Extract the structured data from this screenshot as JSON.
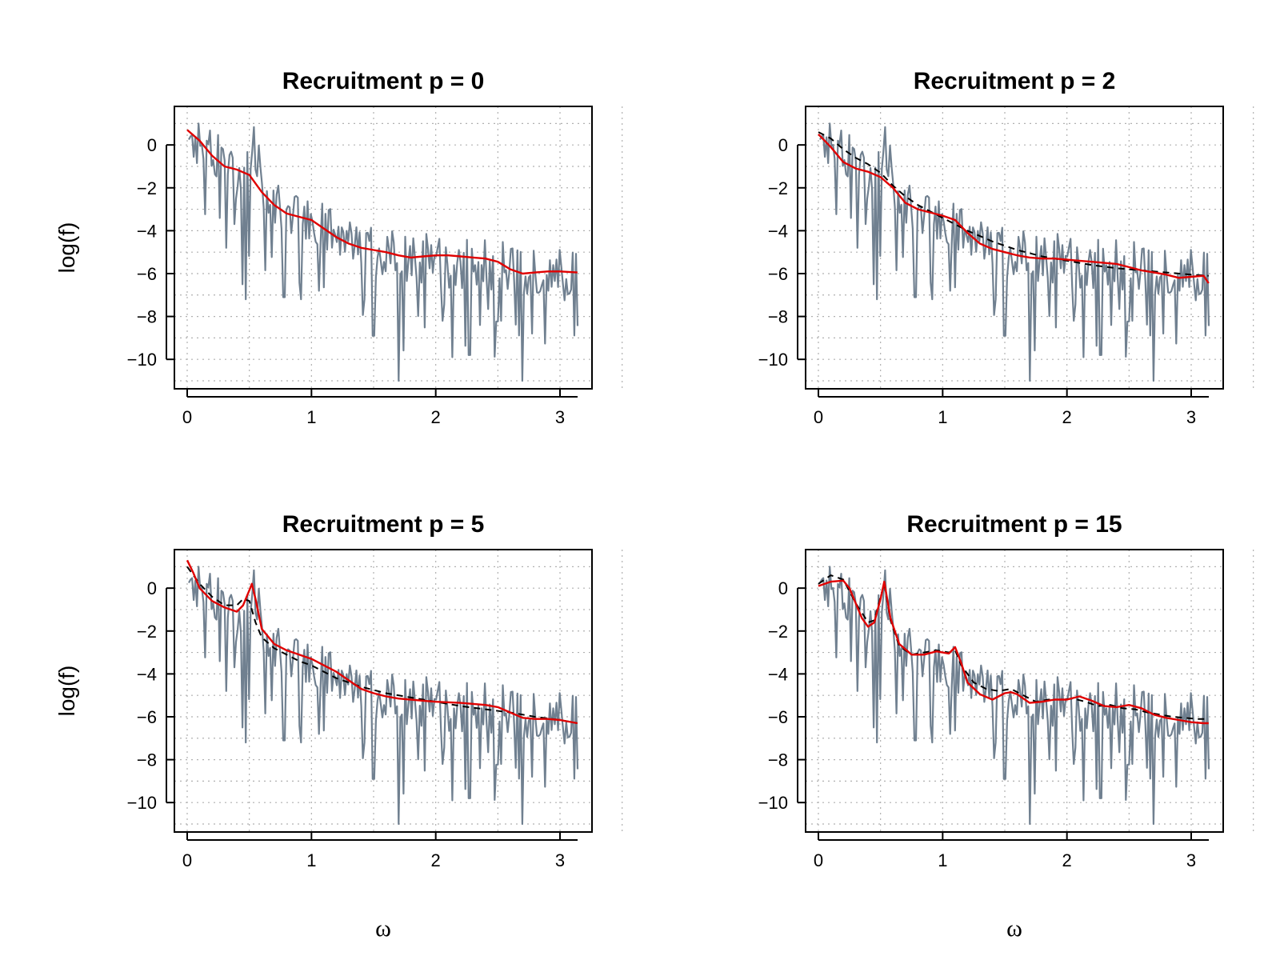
{
  "chart_data": [
    {
      "type": "line",
      "title": "Recruitment p = 0",
      "xlabel": "",
      "ylabel": "log(f)",
      "xlim": [
        0,
        3.14159
      ],
      "ylim": [
        -11,
        1.2
      ],
      "xticks": [
        0,
        1,
        2,
        3
      ],
      "yticks": [
        0,
        -2,
        -4,
        -6,
        -8,
        -10
      ],
      "grid": true,
      "series": [
        {
          "name": "",
          "color": "#708090",
          "style": "solid",
          "kind": "raw"
        },
        {
          "name": "",
          "color": "#e00000",
          "style": "solid",
          "kind": "fit",
          "x": [
            0.0,
            0.1,
            0.2,
            0.3,
            0.4,
            0.5,
            0.6,
            0.7,
            0.8,
            0.9,
            1.0,
            1.1,
            1.2,
            1.3,
            1.4,
            1.5,
            1.6,
            1.7,
            1.8,
            1.9,
            2.0,
            2.1,
            2.2,
            2.3,
            2.4,
            2.5,
            2.6,
            2.7,
            2.8,
            2.9,
            3.0,
            3.14
          ],
          "y": [
            0.7,
            0.2,
            -0.5,
            -1.0,
            -1.15,
            -1.4,
            -2.2,
            -2.8,
            -3.2,
            -3.35,
            -3.5,
            -3.9,
            -4.3,
            -4.6,
            -4.8,
            -4.9,
            -5.0,
            -5.15,
            -5.25,
            -5.2,
            -5.15,
            -5.15,
            -5.2,
            -5.25,
            -5.3,
            -5.45,
            -5.8,
            -6.0,
            -5.95,
            -5.9,
            -5.9,
            -5.95
          ]
        }
      ]
    },
    {
      "type": "line",
      "title": "Recruitment p = 2",
      "xlabel": "",
      "ylabel": "",
      "xlim": [
        0,
        3.14159
      ],
      "ylim": [
        -11,
        1.2
      ],
      "xticks": [
        0,
        1,
        2,
        3
      ],
      "yticks": [
        0,
        -2,
        -4,
        -6,
        -8,
        -10
      ],
      "grid": true,
      "series": [
        {
          "name": "",
          "color": "#708090",
          "style": "solid",
          "kind": "raw"
        },
        {
          "name": "",
          "color": "#000000",
          "style": "dashed",
          "kind": "fit",
          "x": [
            0.0,
            0.1,
            0.2,
            0.3,
            0.4,
            0.5,
            0.6,
            0.7,
            0.8,
            0.9,
            1.0,
            1.2,
            1.4,
            1.6,
            1.8,
            2.0,
            2.2,
            2.4,
            2.6,
            2.8,
            3.0,
            3.14
          ],
          "y": [
            0.6,
            0.3,
            -0.2,
            -0.6,
            -0.9,
            -1.3,
            -1.9,
            -2.4,
            -2.8,
            -3.1,
            -3.4,
            -4.0,
            -4.5,
            -4.9,
            -5.2,
            -5.4,
            -5.6,
            -5.75,
            -5.85,
            -5.95,
            -6.05,
            -6.1
          ]
        },
        {
          "name": "",
          "color": "#e00000",
          "style": "solid",
          "kind": "fit",
          "x": [
            0.0,
            0.1,
            0.2,
            0.3,
            0.4,
            0.5,
            0.6,
            0.7,
            0.8,
            0.9,
            1.0,
            1.1,
            1.2,
            1.3,
            1.4,
            1.5,
            1.6,
            1.7,
            1.8,
            1.9,
            2.0,
            2.1,
            2.2,
            2.3,
            2.4,
            2.5,
            2.6,
            2.7,
            2.8,
            2.9,
            3.0,
            3.1,
            3.14
          ],
          "y": [
            0.5,
            -0.1,
            -0.8,
            -1.1,
            -1.25,
            -1.5,
            -2.0,
            -2.7,
            -3.0,
            -3.15,
            -3.3,
            -3.5,
            -4.1,
            -4.6,
            -4.85,
            -5.0,
            -5.15,
            -5.25,
            -5.3,
            -5.3,
            -5.35,
            -5.4,
            -5.45,
            -5.5,
            -5.55,
            -5.7,
            -5.85,
            -5.95,
            -6.05,
            -6.2,
            -6.15,
            -6.1,
            -6.45
          ]
        }
      ]
    },
    {
      "type": "line",
      "title": "Recruitment p = 5",
      "xlabel": "ω",
      "ylabel": "log(f)",
      "xlim": [
        0,
        3.14159
      ],
      "ylim": [
        -11,
        1.2
      ],
      "xticks": [
        0,
        1,
        2,
        3
      ],
      "yticks": [
        0,
        -2,
        -4,
        -6,
        -8,
        -10
      ],
      "grid": true,
      "series": [
        {
          "name": "",
          "color": "#708090",
          "style": "solid",
          "kind": "raw"
        },
        {
          "name": "",
          "color": "#000000",
          "style": "dashed",
          "kind": "fit",
          "x": [
            0.0,
            0.1,
            0.2,
            0.3,
            0.4,
            0.45,
            0.5,
            0.55,
            0.6,
            0.7,
            0.8,
            0.9,
            1.0,
            1.2,
            1.4,
            1.6,
            1.8,
            2.0,
            2.2,
            2.4,
            2.6,
            2.8,
            3.0,
            3.14
          ],
          "y": [
            1.0,
            0.2,
            -0.4,
            -0.8,
            -0.8,
            -0.5,
            -0.6,
            -1.6,
            -2.3,
            -2.8,
            -3.1,
            -3.4,
            -3.6,
            -4.2,
            -4.6,
            -4.9,
            -5.1,
            -5.3,
            -5.5,
            -5.65,
            -5.8,
            -6.0,
            -6.15,
            -6.3
          ]
        },
        {
          "name": "",
          "color": "#e00000",
          "style": "solid",
          "kind": "fit",
          "x": [
            0.0,
            0.05,
            0.1,
            0.2,
            0.3,
            0.4,
            0.45,
            0.5,
            0.52,
            0.55,
            0.6,
            0.7,
            0.8,
            0.9,
            1.0,
            1.1,
            1.2,
            1.3,
            1.4,
            1.5,
            1.6,
            1.7,
            1.8,
            1.9,
            2.0,
            2.2,
            2.4,
            2.5,
            2.6,
            2.7,
            2.8,
            2.9,
            3.0,
            3.14
          ],
          "y": [
            1.3,
            0.7,
            0.0,
            -0.6,
            -0.9,
            -1.1,
            -0.8,
            -0.1,
            0.2,
            -0.5,
            -1.9,
            -2.6,
            -2.9,
            -3.1,
            -3.3,
            -3.6,
            -3.9,
            -4.3,
            -4.7,
            -4.9,
            -5.05,
            -5.15,
            -5.2,
            -5.25,
            -5.3,
            -5.35,
            -5.45,
            -5.55,
            -5.8,
            -6.05,
            -6.1,
            -6.1,
            -6.15,
            -6.3
          ]
        }
      ]
    },
    {
      "type": "line",
      "title": "Recruitment p = 15",
      "xlabel": "ω",
      "ylabel": "",
      "xlim": [
        0,
        3.14159
      ],
      "ylim": [
        -11,
        1.2
      ],
      "xticks": [
        0,
        1,
        2,
        3
      ],
      "yticks": [
        0,
        -2,
        -4,
        -6,
        -8,
        -10
      ],
      "grid": true,
      "series": [
        {
          "name": "",
          "color": "#708090",
          "style": "solid",
          "kind": "raw"
        },
        {
          "name": "",
          "color": "#000000",
          "style": "dashed",
          "kind": "fit",
          "x": [
            0.0,
            0.1,
            0.2,
            0.3,
            0.4,
            0.45,
            0.5,
            0.53,
            0.58,
            0.65,
            0.75,
            0.85,
            0.95,
            1.05,
            1.1,
            1.15,
            1.25,
            1.35,
            1.45,
            1.55,
            1.65,
            1.75,
            1.85,
            1.95,
            2.05,
            2.15,
            2.25,
            2.35,
            2.45,
            2.55,
            2.65,
            2.75,
            2.85,
            2.95,
            3.05,
            3.14
          ],
          "y": [
            0.2,
            0.6,
            0.4,
            -0.7,
            -1.6,
            -1.5,
            -0.4,
            0.2,
            -1.5,
            -2.7,
            -3.1,
            -3.0,
            -2.9,
            -3.0,
            -2.9,
            -3.6,
            -4.4,
            -4.7,
            -4.8,
            -4.7,
            -5.0,
            -5.3,
            -5.2,
            -5.2,
            -5.15,
            -5.3,
            -5.5,
            -5.45,
            -5.6,
            -5.65,
            -5.8,
            -5.9,
            -6.0,
            -6.05,
            -6.1,
            -6.1
          ]
        },
        {
          "name": "",
          "color": "#e00000",
          "style": "solid",
          "kind": "fit",
          "x": [
            0.0,
            0.1,
            0.2,
            0.25,
            0.3,
            0.35,
            0.4,
            0.45,
            0.5,
            0.53,
            0.58,
            0.65,
            0.75,
            0.85,
            0.95,
            1.0,
            1.05,
            1.1,
            1.15,
            1.2,
            1.3,
            1.4,
            1.5,
            1.55,
            1.6,
            1.7,
            1.8,
            1.9,
            2.0,
            2.1,
            2.2,
            2.3,
            2.4,
            2.5,
            2.6,
            2.7,
            2.8,
            2.9,
            3.0,
            3.1,
            3.14
          ],
          "y": [
            0.1,
            0.3,
            0.35,
            0.0,
            -0.7,
            -1.4,
            -1.8,
            -1.6,
            -0.5,
            0.3,
            -1.4,
            -2.6,
            -3.1,
            -3.1,
            -2.95,
            -3.0,
            -3.05,
            -2.75,
            -3.5,
            -4.4,
            -4.95,
            -5.2,
            -4.9,
            -4.85,
            -4.95,
            -5.35,
            -5.3,
            -5.2,
            -5.2,
            -5.05,
            -5.25,
            -5.5,
            -5.55,
            -5.45,
            -5.6,
            -5.9,
            -6.05,
            -6.15,
            -6.25,
            -6.3,
            -6.3
          ]
        }
      ]
    }
  ]
}
